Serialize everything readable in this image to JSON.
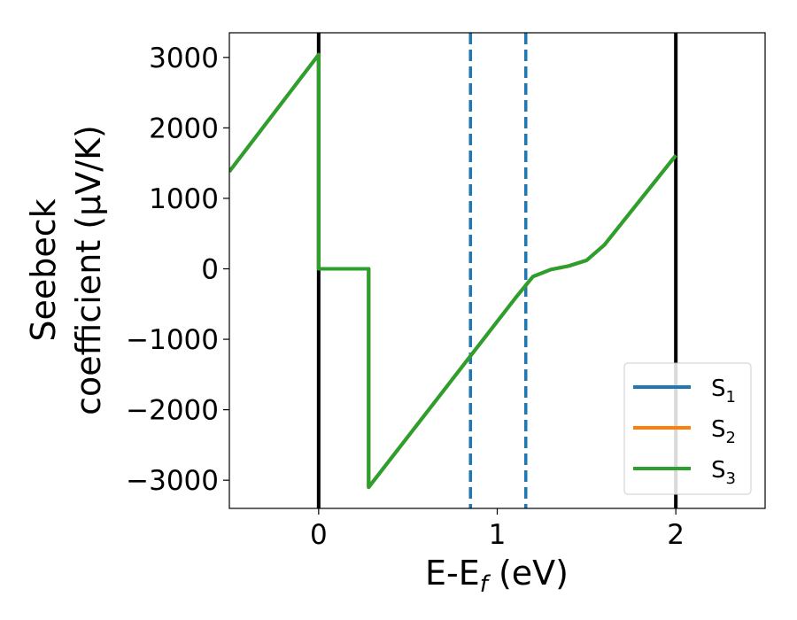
{
  "chart_data": {
    "type": "line",
    "xlabel": "E-E_f (eV)",
    "xlabel_parts": {
      "main": "E-E",
      "sub": "f",
      "unit": " (eV)"
    },
    "ylabel_lines": [
      "Seebeck",
      "coefficient  (μV/K)"
    ],
    "xlim": [
      -0.5,
      2.5
    ],
    "ylim": [
      -3400,
      3350
    ],
    "xticks": [
      0,
      1,
      2
    ],
    "yticks": [
      -3000,
      -2000,
      -1000,
      0,
      1000,
      2000,
      3000
    ],
    "ytick_labels": [
      "−3000",
      "−2000",
      "−1000",
      "0",
      "1000",
      "2000",
      "3000"
    ],
    "grid": false,
    "legend_position": "lower-right",
    "series": [
      {
        "name": "S1",
        "label_main": "S",
        "label_sub": "1",
        "color": "#1f77b4",
        "points": [
          [
            -0.5,
            1380
          ],
          [
            0.0,
            3040
          ],
          [
            0.0,
            0
          ],
          [
            0.28,
            0
          ],
          [
            0.28,
            -3100
          ],
          [
            1.1,
            -420
          ],
          [
            1.2,
            -110
          ],
          [
            1.3,
            -10
          ],
          [
            1.4,
            40
          ],
          [
            1.5,
            120
          ],
          [
            1.6,
            340
          ],
          [
            2.0,
            1610
          ]
        ]
      },
      {
        "name": "S2",
        "label_main": "S",
        "label_sub": "2",
        "color": "#ff7f0e",
        "points": [
          [
            -0.5,
            1380
          ],
          [
            0.0,
            3040
          ],
          [
            0.0,
            0
          ],
          [
            0.28,
            0
          ],
          [
            0.28,
            -3100
          ],
          [
            1.1,
            -420
          ],
          [
            1.2,
            -110
          ],
          [
            1.3,
            -10
          ],
          [
            1.4,
            40
          ],
          [
            1.5,
            120
          ],
          [
            1.6,
            340
          ],
          [
            2.0,
            1610
          ]
        ]
      },
      {
        "name": "S3",
        "label_main": "S",
        "label_sub": "3",
        "color": "#2ca02c",
        "points": [
          [
            -0.5,
            1380
          ],
          [
            0.0,
            3040
          ],
          [
            0.0,
            0
          ],
          [
            0.28,
            0
          ],
          [
            0.28,
            -3100
          ],
          [
            1.1,
            -420
          ],
          [
            1.2,
            -110
          ],
          [
            1.3,
            -10
          ],
          [
            1.4,
            40
          ],
          [
            1.5,
            120
          ],
          [
            1.6,
            340
          ],
          [
            2.0,
            1610
          ]
        ]
      }
    ],
    "vertical_lines": [
      {
        "x": 0.0,
        "color": "#000000",
        "style": "solid"
      },
      {
        "x": 2.0,
        "color": "#000000",
        "style": "solid"
      },
      {
        "x": 0.85,
        "color": "#1f77b4",
        "style": "dashed"
      },
      {
        "x": 1.16,
        "color": "#1f77b4",
        "style": "dashed"
      }
    ]
  }
}
